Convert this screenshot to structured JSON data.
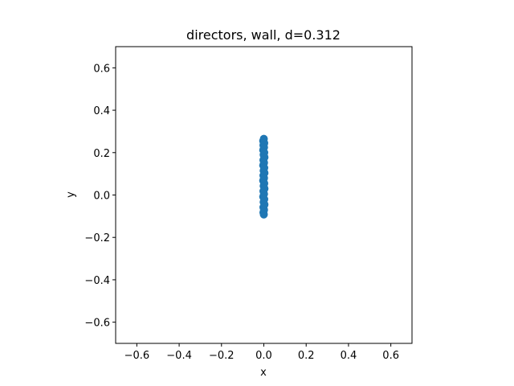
{
  "chart_data": {
    "type": "scatter",
    "title": "directors, wall, d=0.312",
    "xlabel": "x",
    "ylabel": "y",
    "xlim": [
      -0.7,
      0.7
    ],
    "ylim": [
      -0.7,
      0.7
    ],
    "xticks": [
      -0.6,
      -0.4,
      -0.2,
      0.0,
      0.2,
      0.4,
      0.6
    ],
    "yticks": [
      -0.6,
      -0.4,
      -0.2,
      0.0,
      0.2,
      0.4,
      0.6
    ],
    "xtick_labels": [
      "−0.6",
      "−0.4",
      "−0.2",
      "0.0",
      "0.2",
      "0.4",
      "0.6"
    ],
    "ytick_labels": [
      "−0.6",
      "−0.4",
      "−0.2",
      "0.0",
      "0.2",
      "0.4",
      "0.6"
    ],
    "grid": false,
    "marker_color": "#1f77b4",
    "points": [
      {
        "x": 0.0,
        "y": 0.265
      },
      {
        "x": -0.003,
        "y": 0.255
      },
      {
        "x": 0.002,
        "y": 0.245
      },
      {
        "x": -0.002,
        "y": 0.235
      },
      {
        "x": 0.001,
        "y": 0.225
      },
      {
        "x": -0.003,
        "y": 0.212
      },
      {
        "x": 0.002,
        "y": 0.2
      },
      {
        "x": -0.001,
        "y": 0.19
      },
      {
        "x": 0.003,
        "y": 0.178
      },
      {
        "x": -0.002,
        "y": 0.165
      },
      {
        "x": 0.001,
        "y": 0.152
      },
      {
        "x": -0.003,
        "y": 0.14
      },
      {
        "x": 0.002,
        "y": 0.128
      },
      {
        "x": -0.001,
        "y": 0.115
      },
      {
        "x": 0.003,
        "y": 0.104
      },
      {
        "x": -0.002,
        "y": 0.092
      },
      {
        "x": 0.001,
        "y": 0.08
      },
      {
        "x": -0.003,
        "y": 0.068
      },
      {
        "x": 0.002,
        "y": 0.055
      },
      {
        "x": -0.001,
        "y": 0.043
      },
      {
        "x": 0.003,
        "y": 0.03
      },
      {
        "x": -0.002,
        "y": 0.018
      },
      {
        "x": 0.001,
        "y": 0.005
      },
      {
        "x": -0.003,
        "y": -0.008
      },
      {
        "x": 0.002,
        "y": -0.02
      },
      {
        "x": -0.001,
        "y": -0.033
      },
      {
        "x": 0.003,
        "y": -0.045
      },
      {
        "x": -0.002,
        "y": -0.058
      },
      {
        "x": 0.001,
        "y": -0.07
      },
      {
        "x": -0.002,
        "y": -0.082
      },
      {
        "x": 0.0,
        "y": -0.092
      }
    ]
  }
}
